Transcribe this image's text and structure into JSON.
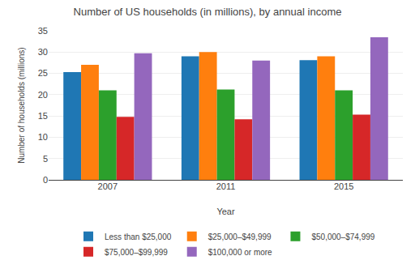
{
  "chart_data": {
    "type": "bar",
    "title": "Number of US households (in millions), by annual income",
    "xlabel": "Year",
    "ylabel": "Number of households (millions)",
    "categories": [
      "2007",
      "2011",
      "2015"
    ],
    "series": [
      {
        "name": "Less than $25,000",
        "values": [
          25.3,
          29.0,
          28.1
        ]
      },
      {
        "name": "$25,000–$49,999",
        "values": [
          27.0,
          30.0,
          29.0
        ]
      },
      {
        "name": "$50,000–$74,999",
        "values": [
          21.0,
          21.2,
          21.0
        ]
      },
      {
        "name": "$75,000–$99,999",
        "values": [
          14.8,
          14.2,
          15.3
        ]
      },
      {
        "name": "$100,000 or more",
        "values": [
          29.7,
          28.0,
          33.5
        ]
      }
    ],
    "ylim": [
      0,
      35
    ],
    "yticks": [
      0,
      5,
      10,
      15,
      20,
      25,
      30,
      35
    ],
    "grid": true,
    "legend": "bottom"
  }
}
